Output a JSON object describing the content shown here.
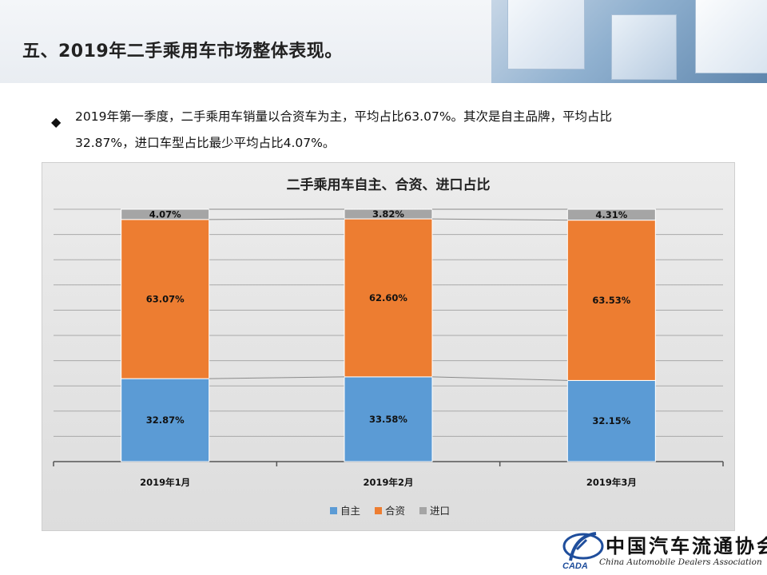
{
  "page": {
    "title": "五、2019年二手乘用车市场整体表现。",
    "bullet_line1": "2019年第一季度，二手乘用车销量以合资车为主，平均占比63.07%。其次是自主品牌，平均占比",
    "bullet_line2": "32.87%，进口车型占比最少平均占比4.07%。"
  },
  "chart_data": {
    "type": "bar",
    "stacked": true,
    "title": "二手乘用车自主、合资、进口占比",
    "categories": [
      "2019年1月",
      "2019年2月",
      "2019年3月"
    ],
    "series": [
      {
        "name": "自主",
        "values": [
          32.87,
          33.58,
          32.15
        ],
        "labels": [
          "32.87%",
          "33.58%",
          "32.15%"
        ],
        "color": "#5b9bd5"
      },
      {
        "name": "合资",
        "values": [
          63.07,
          62.6,
          63.53
        ],
        "labels": [
          "63.07%",
          "62.60%",
          "63.53%"
        ],
        "color": "#ed7d31"
      },
      {
        "name": "进口",
        "values": [
          4.07,
          3.82,
          4.31
        ],
        "labels": [
          "4.07%",
          "3.82%",
          "4.31%"
        ],
        "color": "#a5a5a5"
      }
    ],
    "ylim": [
      0,
      100
    ],
    "grid": true,
    "series_lines": true,
    "legend_position": "bottom"
  },
  "logo": {
    "cn": "中国汽车流通协会",
    "en": "China Automobile Dealers Association",
    "mark_text": "CADA"
  }
}
